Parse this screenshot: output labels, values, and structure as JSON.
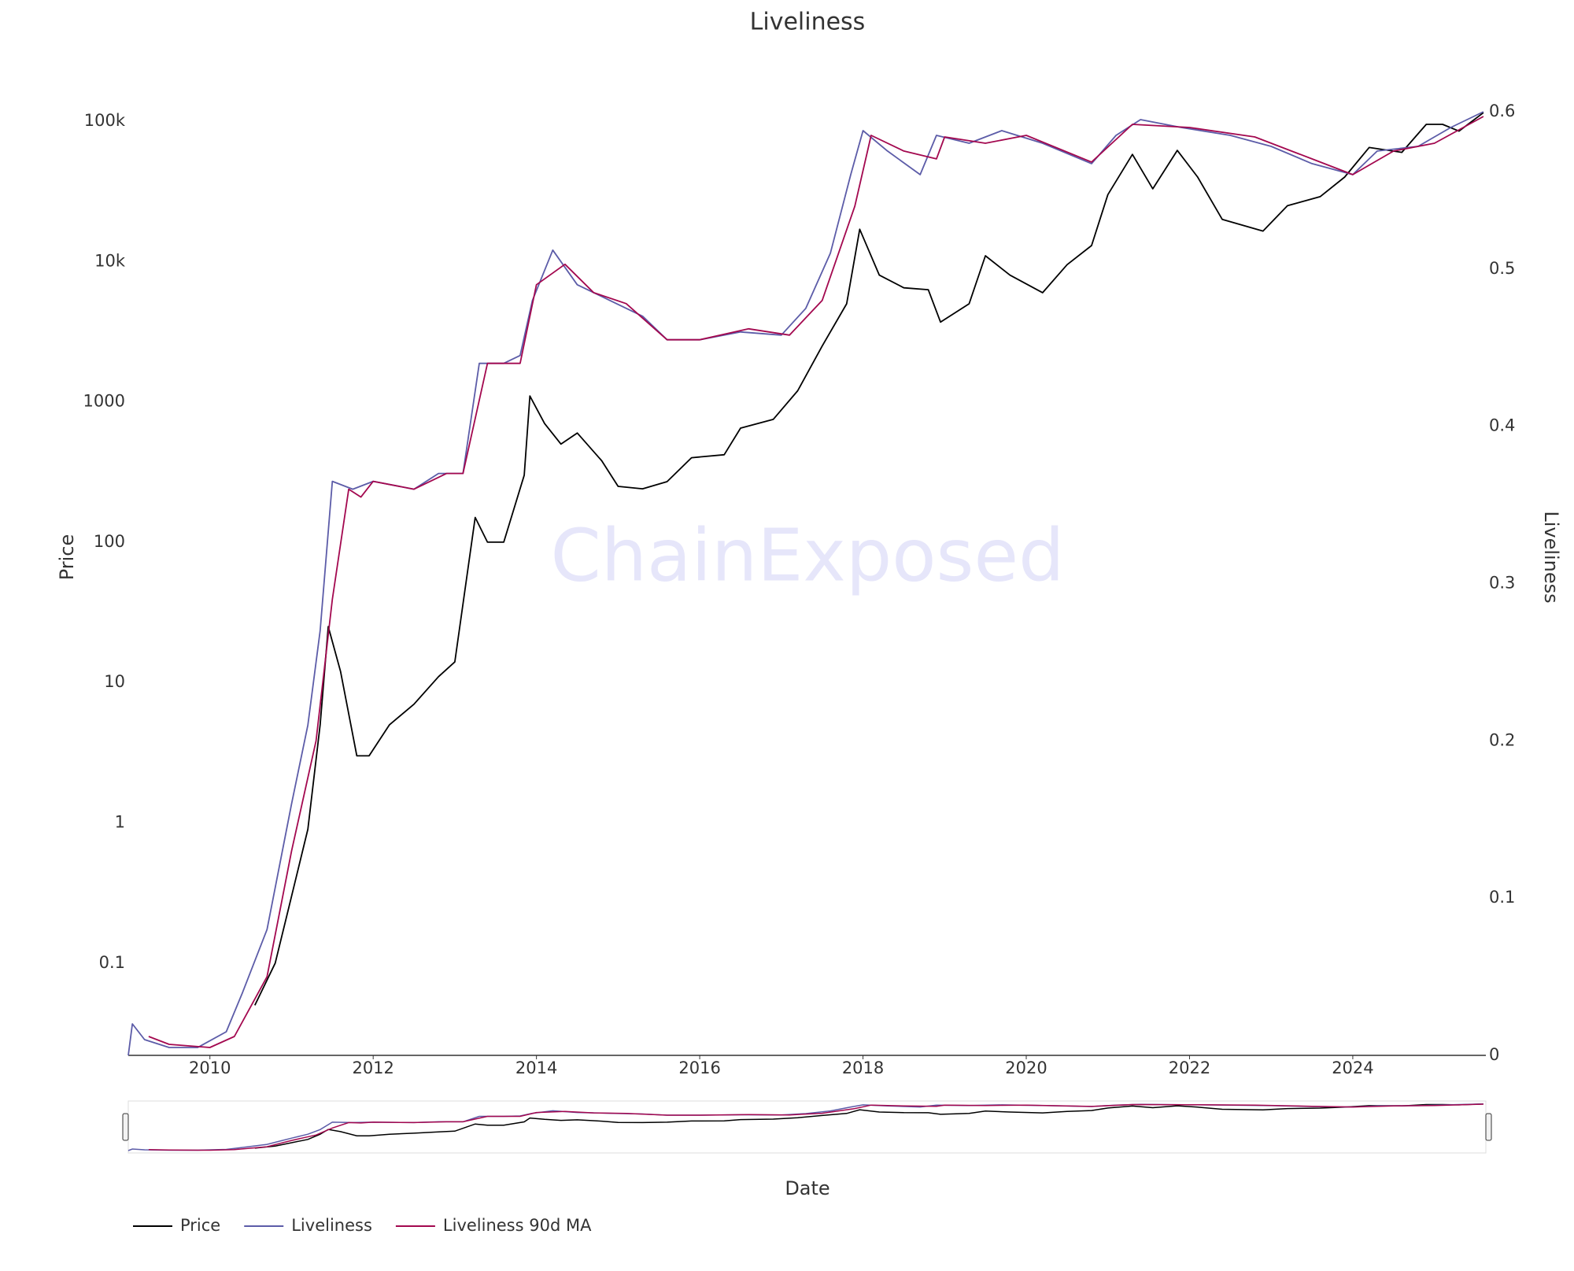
{
  "chart_data": {
    "type": "line",
    "title": "Liveliness",
    "watermark": "ChainExposed",
    "x_label": "Date",
    "y_label": "Price",
    "y2_label": "Liveliness",
    "y_log": true,
    "xlim": [
      2009.0,
      2025.63
    ],
    "xticks": [
      2010,
      2012,
      2014,
      2016,
      2018,
      2020,
      2022,
      2024
    ],
    "ylim": [
      0.022,
      140000
    ],
    "yticks": [
      0.1,
      1,
      10,
      100,
      1000,
      {
        "value": 10000,
        "label": "10k"
      },
      {
        "value": 100000,
        "label": "100k"
      }
    ],
    "y2lim": [
      0,
      0.607
    ],
    "y2ticks": [
      0,
      0.1,
      0.2,
      0.3,
      0.4,
      0.5,
      0.6
    ],
    "legend": "bottom-left",
    "series": [
      {
        "name": "Price",
        "color": "#000000",
        "axis": "y",
        "x": [
          2010.55,
          2010.8,
          2011.0,
          2011.2,
          2011.35,
          2011.45,
          2011.6,
          2011.8,
          2011.95,
          2012.2,
          2012.5,
          2012.8,
          2013.0,
          2013.25,
          2013.4,
          2013.6,
          2013.85,
          2013.92,
          2014.1,
          2014.3,
          2014.5,
          2014.8,
          2015.0,
          2015.3,
          2015.6,
          2015.9,
          2016.3,
          2016.5,
          2016.9,
          2017.2,
          2017.5,
          2017.8,
          2017.96,
          2018.2,
          2018.5,
          2018.8,
          2018.95,
          2019.3,
          2019.5,
          2019.8,
          2020.2,
          2020.5,
          2020.8,
          2021.0,
          2021.3,
          2021.55,
          2021.85,
          2022.1,
          2022.4,
          2022.9,
          2023.2,
          2023.6,
          2023.9,
          2024.2,
          2024.6,
          2024.9,
          2025.1,
          2025.3,
          2025.6
        ],
        "values": [
          0.05,
          0.1,
          0.3,
          0.9,
          5,
          25,
          12,
          3,
          3,
          5,
          7,
          11,
          14,
          150,
          100,
          100,
          300,
          1100,
          700,
          500,
          600,
          380,
          250,
          240,
          270,
          400,
          420,
          650,
          750,
          1200,
          2500,
          5000,
          17000,
          8000,
          6500,
          6300,
          3700,
          5000,
          11000,
          8000,
          6000,
          9500,
          13000,
          30000,
          58000,
          33000,
          62000,
          40000,
          20000,
          16500,
          25000,
          29000,
          40000,
          65000,
          60000,
          95000,
          95000,
          85000,
          115000
        ]
      },
      {
        "name": "Liveliness",
        "color": "#5c5ca8",
        "axis": "y2",
        "x": [
          2009.0,
          2009.05,
          2009.2,
          2009.5,
          2009.85,
          2010.2,
          2010.4,
          2010.7,
          2010.85,
          2011.0,
          2011.2,
          2011.35,
          2011.5,
          2011.75,
          2012.0,
          2012.5,
          2012.8,
          2013.1,
          2013.3,
          2013.6,
          2013.8,
          2013.95,
          2014.2,
          2014.5,
          2014.9,
          2015.3,
          2015.6,
          2016.0,
          2016.5,
          2017.0,
          2017.3,
          2017.6,
          2017.85,
          2018.0,
          2018.3,
          2018.7,
          2018.9,
          2019.3,
          2019.7,
          2020.2,
          2020.8,
          2021.1,
          2021.4,
          2021.9,
          2022.5,
          2023.0,
          2023.5,
          2024.0,
          2024.3,
          2024.8,
          2025.2,
          2025.6
        ],
        "values": [
          0,
          0.02,
          0.01,
          0.005,
          0.005,
          0.015,
          0.04,
          0.08,
          0.12,
          0.16,
          0.21,
          0.27,
          0.365,
          0.36,
          0.365,
          0.36,
          0.37,
          0.37,
          0.44,
          0.44,
          0.445,
          0.48,
          0.512,
          0.49,
          0.48,
          0.47,
          0.455,
          0.455,
          0.46,
          0.458,
          0.475,
          0.51,
          0.56,
          0.588,
          0.575,
          0.56,
          0.585,
          0.58,
          0.588,
          0.58,
          0.567,
          0.585,
          0.595,
          0.59,
          0.585,
          0.578,
          0.567,
          0.56,
          0.575,
          0.578,
          0.59,
          0.6
        ]
      },
      {
        "name": "Liveliness 90d MA",
        "color": "#a3084f",
        "axis": "y2",
        "x": [
          2009.25,
          2009.5,
          2010.0,
          2010.3,
          2010.7,
          2011.0,
          2011.3,
          2011.5,
          2011.7,
          2011.85,
          2012.0,
          2012.5,
          2012.9,
          2013.1,
          2013.4,
          2013.6,
          2013.8,
          2014.0,
          2014.35,
          2014.7,
          2015.1,
          2015.6,
          2016.0,
          2016.6,
          2017.1,
          2017.5,
          2017.9,
          2018.1,
          2018.5,
          2018.9,
          2019.0,
          2019.5,
          2020.0,
          2020.8,
          2021.3,
          2022.0,
          2022.8,
          2023.5,
          2024.0,
          2024.5,
          2025.0,
          2025.6
        ],
        "values": [
          0.012,
          0.007,
          0.005,
          0.012,
          0.05,
          0.13,
          0.2,
          0.29,
          0.36,
          0.355,
          0.365,
          0.36,
          0.37,
          0.37,
          0.44,
          0.44,
          0.44,
          0.49,
          0.503,
          0.485,
          0.478,
          0.455,
          0.455,
          0.462,
          0.458,
          0.48,
          0.54,
          0.585,
          0.575,
          0.57,
          0.584,
          0.58,
          0.585,
          0.568,
          0.592,
          0.59,
          0.584,
          0.57,
          0.56,
          0.575,
          0.58,
          0.597
        ]
      }
    ]
  }
}
